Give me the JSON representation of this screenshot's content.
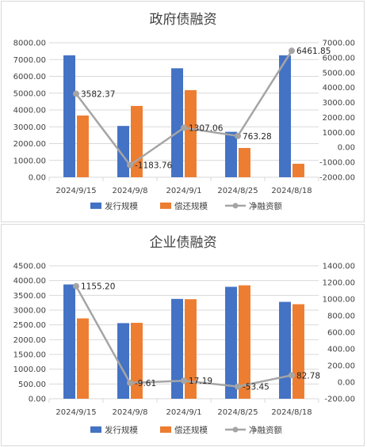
{
  "colors": {
    "issue": "#4472c4",
    "repay": "#ed7d31",
    "net": "#a5a5a5",
    "grid": "#d9d9d9",
    "axis_text": "#404040"
  },
  "legend": [
    "发行规模",
    "偿还规模",
    "净融资额"
  ],
  "chart_data": [
    {
      "type": "bar",
      "title": "政府债融资",
      "categories": [
        "2024/9/15",
        "2024/9/8",
        "2024/9/1",
        "2024/8/25",
        "2024/8/18"
      ],
      "series": [
        {
          "name": "发行规模",
          "type": "bar",
          "axis": "left",
          "values": [
            7250,
            3050,
            6480,
            2700,
            7250
          ]
        },
        {
          "name": "偿还规模",
          "type": "bar",
          "axis": "left",
          "values": [
            3670,
            4240,
            5180,
            1740,
            800
          ]
        },
        {
          "name": "净融资额",
          "type": "line",
          "axis": "right",
          "values": [
            3582.37,
            -1183.76,
            1307.06,
            763.28,
            6461.85
          ]
        }
      ],
      "data_labels": [
        "3582.37",
        "-1183.76",
        "1307.06",
        "763.28",
        "6461.85"
      ],
      "left_axis": {
        "ylim": [
          0,
          8000
        ],
        "ticks": [
          "0.00",
          "1000.00",
          "2000.00",
          "3000.00",
          "4000.00",
          "5000.00",
          "6000.00",
          "7000.00",
          "8000.00"
        ]
      },
      "right_axis": {
        "ylim": [
          -2000,
          7000
        ],
        "ticks": [
          "-2000.00",
          "-1000.00",
          "0.00",
          "1000.00",
          "2000.00",
          "3000.00",
          "4000.00",
          "5000.00",
          "6000.00",
          "7000.00"
        ]
      },
      "grid": true,
      "legend_position": "bottom"
    },
    {
      "type": "bar",
      "title": "企业债融资",
      "categories": [
        "2024/9/15",
        "2024/9/8",
        "2024/9/1",
        "2024/8/25",
        "2024/8/18"
      ],
      "series": [
        {
          "name": "发行规模",
          "type": "bar",
          "axis": "left",
          "values": [
            3870,
            2560,
            3380,
            3790,
            3280
          ]
        },
        {
          "name": "偿还规模",
          "type": "bar",
          "axis": "left",
          "values": [
            2720,
            2570,
            3370,
            3840,
            3200
          ]
        },
        {
          "name": "净融资额",
          "type": "line",
          "axis": "right",
          "values": [
            1155.2,
            -9.61,
            17.19,
            -53.45,
            82.78
          ]
        }
      ],
      "data_labels": [
        "1155.20",
        "-9.61",
        "17.19",
        "-53.45",
        "82.78"
      ],
      "left_axis": {
        "ylim": [
          0,
          4500
        ],
        "ticks": [
          "0.00",
          "500.00",
          "1000.00",
          "1500.00",
          "2000.00",
          "2500.00",
          "3000.00",
          "3500.00",
          "4000.00",
          "4500.00"
        ]
      },
      "right_axis": {
        "ylim": [
          -200,
          1400
        ],
        "ticks": [
          "-200.00",
          "0.00",
          "200.00",
          "400.00",
          "600.00",
          "800.00",
          "1000.00",
          "1200.00",
          "1400.00"
        ]
      },
      "grid": true,
      "legend_position": "bottom"
    }
  ]
}
